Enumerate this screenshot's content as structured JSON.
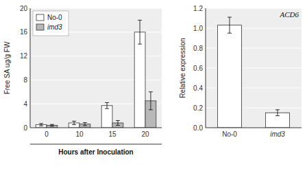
{
  "chart_data": [
    {
      "type": "bar",
      "categories": [
        "0",
        "10",
        "15",
        "20"
      ],
      "series": [
        {
          "name": "No-0",
          "color": "#ffffff",
          "values": [
            0.5,
            0.8,
            3.7,
            16.0
          ],
          "errors": [
            0.2,
            0.3,
            0.5,
            2.0
          ]
        },
        {
          "name": "imd3",
          "color": "#b8b8b8",
          "values": [
            0.4,
            0.6,
            0.8,
            4.5
          ],
          "errors": [
            0.15,
            0.25,
            0.4,
            1.5
          ]
        }
      ],
      "ylabel": "Free SA ug/g FW",
      "xlabel": "Hours after Inoculation",
      "ylim": [
        0,
        20
      ],
      "yticks": [
        0,
        4,
        8,
        12,
        16,
        20
      ],
      "grid": true,
      "legend": "upper left"
    },
    {
      "type": "bar",
      "title": "ACD6",
      "categories": [
        "No-0",
        "imd3"
      ],
      "values": [
        1.03,
        0.15
      ],
      "errors": [
        0.08,
        0.03
      ],
      "color": "#ffffff",
      "ylabel": "Relative expression",
      "ylim": [
        0,
        1.2
      ],
      "yticks": [
        {
          "value": 0,
          "label": "0.0"
        },
        0.2,
        0.4,
        0.6,
        0.8,
        {
          "value": 1.0,
          "label": "1.0"
        },
        1.2
      ],
      "grid": true
    }
  ]
}
